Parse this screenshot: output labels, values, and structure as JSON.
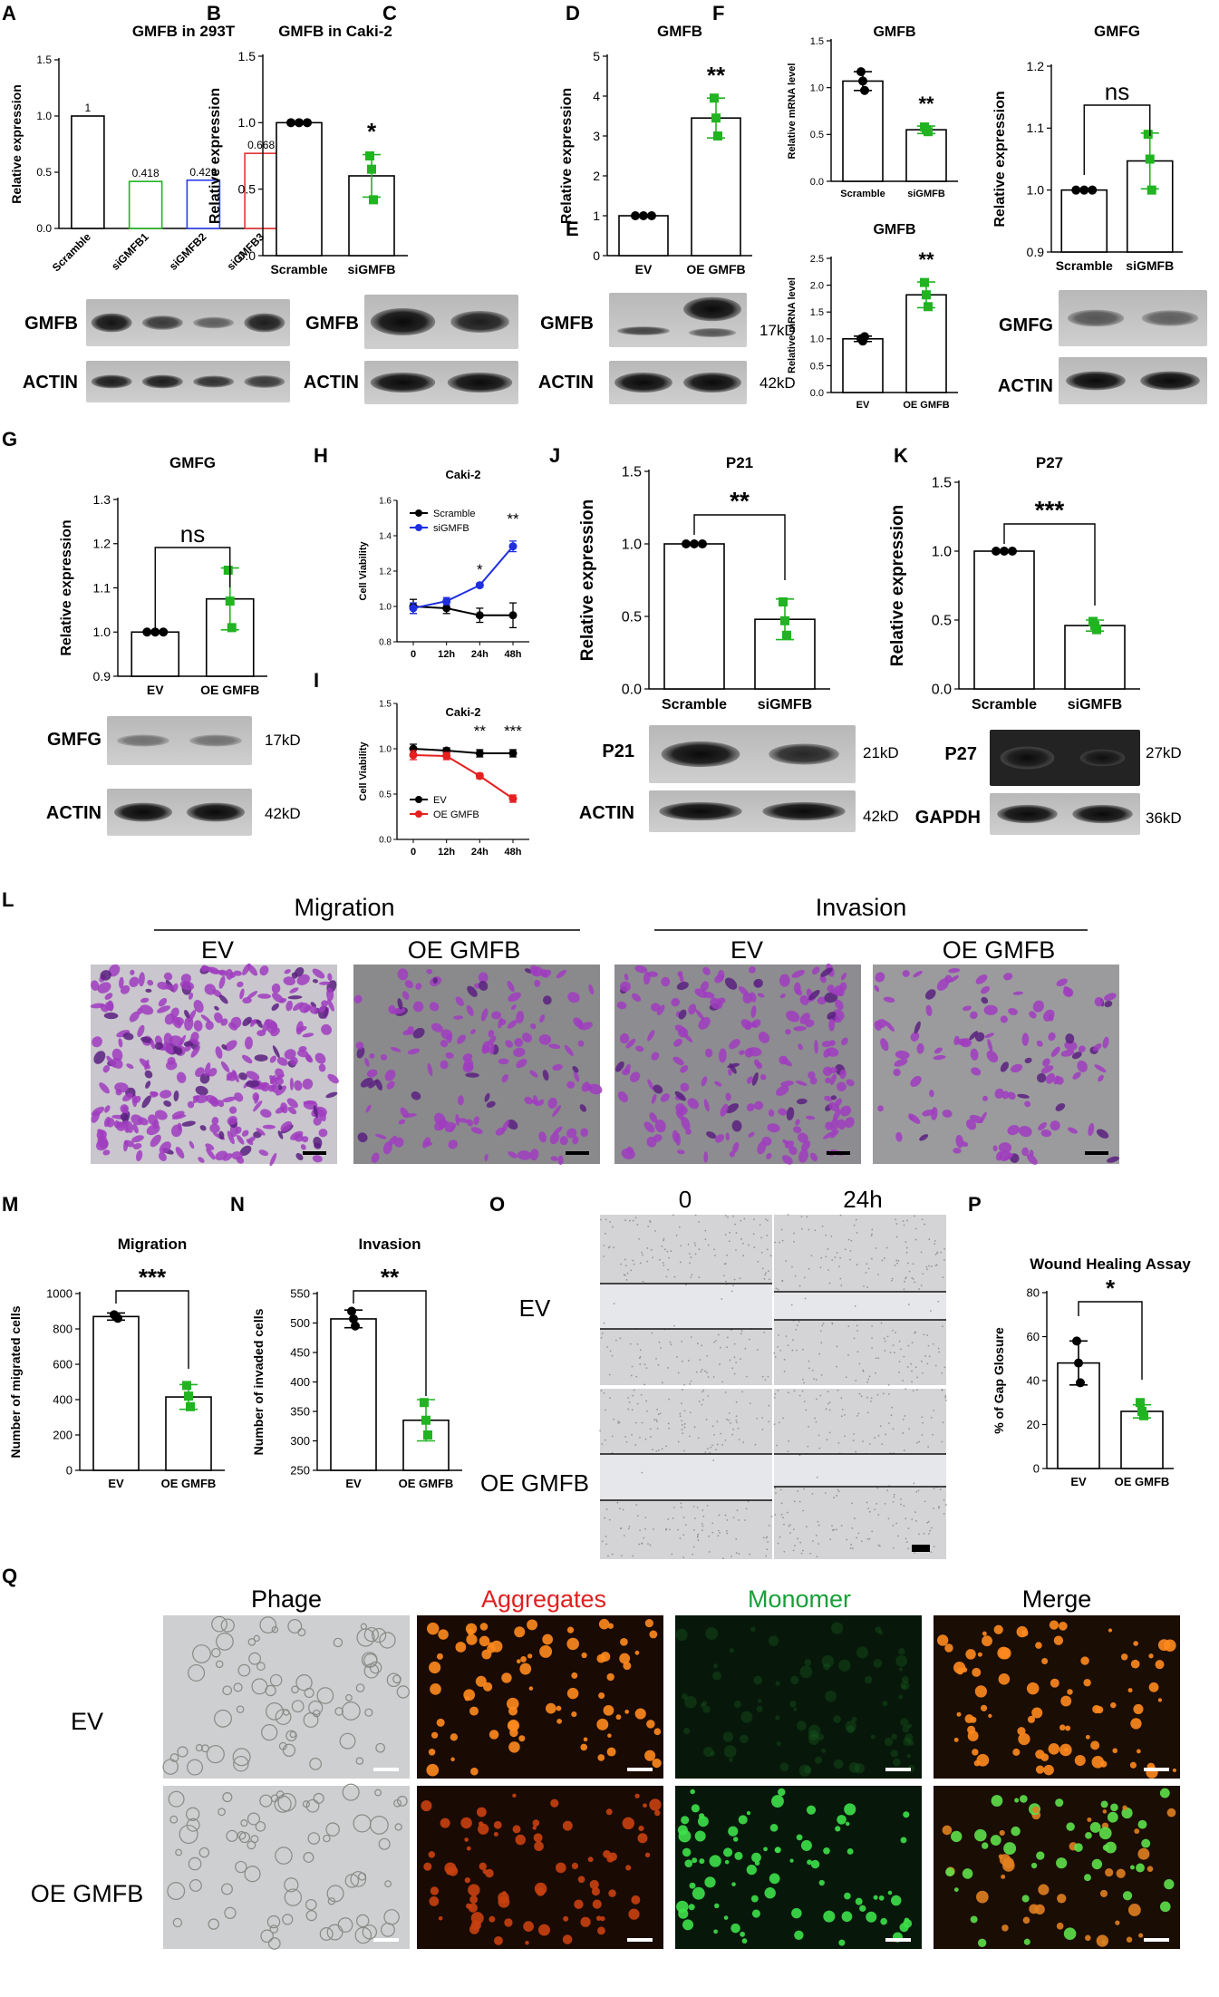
{
  "panels": {
    "A": {
      "letter": "A",
      "title": "GMFB in 293T",
      "ylabel": "Relative expression",
      "yticks": [
        "0.0",
        "0.5",
        "1.0",
        "1.5"
      ],
      "categories": [
        "Scramble",
        "siGMFB1",
        "siGMFB2",
        "siGMFB3"
      ],
      "values": [
        1,
        0.418,
        0.429,
        0.668
      ],
      "value_labels": [
        "1",
        "0.418",
        "0.429",
        "0.668"
      ],
      "bar_colors": [
        "#000000",
        "#22b322",
        "#2b3de6",
        "#e63232"
      ],
      "blots": [
        "GMFB",
        "ACTIN"
      ]
    },
    "B": {
      "letter": "B",
      "title": "GMFB in Caki-2",
      "ylabel": "Relative expression",
      "yticks": [
        "0.0",
        "0.5",
        "1.0",
        "1.5"
      ],
      "categories": [
        "Scramble",
        "siGMFB"
      ],
      "values": [
        1.0,
        0.6
      ],
      "sig": "*",
      "blots": [
        "GMFB",
        "ACTIN"
      ]
    },
    "C": {
      "letter": "C",
      "title": "GMFB",
      "ylabel": "Relative expression",
      "yticks": [
        "0",
        "1",
        "2",
        "3",
        "4",
        "5"
      ],
      "categories": [
        "EV",
        "OE GMFB"
      ],
      "values": [
        1.0,
        3.45
      ],
      "sig": "**",
      "blots": [
        "GMFB",
        "ACTIN"
      ],
      "sizes": [
        "17kD",
        "42kD"
      ]
    },
    "D": {
      "letter": "D",
      "title": "GMFB",
      "ylabel": "Relative mRNA level",
      "yticks": [
        "0.0",
        "0.5",
        "1.0",
        "1.5"
      ],
      "categories": [
        "Scramble",
        "siGMFB"
      ],
      "values": [
        1.07,
        0.55
      ],
      "sig": "**"
    },
    "E": {
      "letter": "E",
      "title": "GMFB",
      "ylabel": "Relative mRNA level",
      "yticks": [
        "0.0",
        "0.5",
        "1.0",
        "1.5",
        "2.0",
        "2.5"
      ],
      "categories": [
        "EV",
        "OE GMFB"
      ],
      "values": [
        1.0,
        1.82
      ],
      "sig": "**"
    },
    "F": {
      "letter": "F",
      "title": "GMFG",
      "ylabel": "Relative expression",
      "yticks": [
        "0.9",
        "1.0",
        "1.1",
        "1.2"
      ],
      "categories": [
        "Scramble",
        "siGMFB"
      ],
      "values": [
        1.0,
        1.047
      ],
      "sig": "ns",
      "blots": [
        "GMFG",
        "ACTIN"
      ]
    },
    "G": {
      "letter": "G",
      "title": "GMFG",
      "ylabel": "Relative expression",
      "yticks": [
        "0.9",
        "1.0",
        "1.1",
        "1.2",
        "1.3"
      ],
      "categories": [
        "EV",
        "OE GMFB"
      ],
      "values": [
        1.0,
        1.075
      ],
      "sig": "ns",
      "blots": [
        "GMFG",
        "ACTIN"
      ],
      "sizes": [
        "17kD",
        "42kD"
      ]
    },
    "H": {
      "letter": "H",
      "title": "Caki-2",
      "ylabel": "Cell Viability",
      "yticks": [
        "0.8",
        "1.0",
        "1.2",
        "1.4",
        "1.6"
      ],
      "xticks": [
        "0",
        "12h",
        "24h",
        "48h"
      ],
      "legend": [
        "Scramble",
        "siGMFB"
      ],
      "sig": [
        "*",
        "**"
      ]
    },
    "I": {
      "letter": "I",
      "title": "Caki-2",
      "ylabel": "Cell Viability",
      "yticks": [
        "0.0",
        "0.5",
        "1.0",
        "1.5"
      ],
      "xticks": [
        "0",
        "12h",
        "24h",
        "48h"
      ],
      "legend": [
        "EV",
        "OE GMFB"
      ],
      "sig": [
        "**",
        "***"
      ]
    },
    "J": {
      "letter": "J",
      "title": "P21",
      "ylabel": "Relative expression",
      "yticks": [
        "0.0",
        "0.5",
        "1.0",
        "1.5"
      ],
      "categories": [
        "Scramble",
        "siGMFB"
      ],
      "values": [
        1.0,
        0.48
      ],
      "sig": "**",
      "blots": [
        "P21",
        "ACTIN"
      ],
      "sizes": [
        "21kD",
        "42kD"
      ]
    },
    "K": {
      "letter": "K",
      "title": "P27",
      "ylabel": "Relative expression",
      "yticks": [
        "0.0",
        "0.5",
        "1.0",
        "1.5"
      ],
      "categories": [
        "Scramble",
        "siGMFB"
      ],
      "values": [
        1.0,
        0.46
      ],
      "sig": "***",
      "blots": [
        "P27",
        "GAPDH"
      ],
      "sizes": [
        "27kD",
        "36kD"
      ]
    },
    "L": {
      "letter": "L",
      "groups": [
        "Migration",
        "Invasion"
      ],
      "cols": [
        "EV",
        "OE GMFB",
        "EV",
        "OE GMFB"
      ]
    },
    "M": {
      "letter": "M",
      "title": "Migration",
      "ylabel": "Number of migrated cells",
      "yticks": [
        "0",
        "200",
        "400",
        "600",
        "800",
        "1000"
      ],
      "categories": [
        "EV",
        "OE GMFB"
      ],
      "values": [
        870,
        415
      ],
      "sig": "***"
    },
    "N": {
      "letter": "N",
      "title": "Invasion",
      "ylabel": "Number of invaded cells",
      "yticks": [
        "250",
        "300",
        "350",
        "400",
        "450",
        "500",
        "550"
      ],
      "categories": [
        "EV",
        "OE GMFB"
      ],
      "values": [
        507,
        335
      ],
      "sig": "**"
    },
    "O": {
      "letter": "O",
      "cols": [
        "0",
        "24h"
      ],
      "rows": [
        "EV",
        "OE GMFB"
      ]
    },
    "P": {
      "letter": "P",
      "title": "Wound Healing Assay",
      "ylabel": "% of Gap Glosure",
      "yticks": [
        "0",
        "20",
        "40",
        "60",
        "80"
      ],
      "categories": [
        "EV",
        "OE GMFB"
      ],
      "values": [
        48,
        26
      ],
      "sig": "*"
    },
    "Q": {
      "letter": "Q",
      "cols": [
        "Phage",
        "Aggregates",
        "Monomer",
        "Merge"
      ],
      "col_colors": [
        "#000000",
        "#e0201f",
        "#18a038",
        "#000000"
      ],
      "rows": [
        "EV",
        "OE GMFB"
      ]
    }
  },
  "chart_data": [
    {
      "type": "bar",
      "title": "GMFB in 293T",
      "ylabel": "Relative expression",
      "ylim": [
        0,
        1.5
      ],
      "categories": [
        "Scramble",
        "siGMFB1",
        "siGMFB2",
        "siGMFB3"
      ],
      "values": [
        1,
        0.418,
        0.429,
        0.668
      ]
    },
    {
      "type": "bar",
      "title": "GMFB in Caki-2",
      "ylabel": "Relative expression",
      "ylim": [
        0,
        1.5
      ],
      "categories": [
        "Scramble",
        "siGMFB"
      ],
      "values": [
        1.0,
        0.6
      ]
    },
    {
      "type": "bar",
      "title": "GMFB",
      "ylabel": "Relative expression",
      "ylim": [
        0,
        5
      ],
      "categories": [
        "EV",
        "OE GMFB"
      ],
      "values": [
        1.0,
        3.45
      ]
    },
    {
      "type": "bar",
      "title": "GMFB",
      "ylabel": "Relative mRNA level",
      "ylim": [
        0,
        1.5
      ],
      "categories": [
        "Scramble",
        "siGMFB"
      ],
      "values": [
        1.07,
        0.55
      ]
    },
    {
      "type": "bar",
      "title": "GMFB",
      "ylabel": "Relative mRNA level",
      "ylim": [
        0,
        2.5
      ],
      "categories": [
        "EV",
        "OE GMFB"
      ],
      "values": [
        1.0,
        1.82
      ]
    },
    {
      "type": "bar",
      "title": "GMFG",
      "ylabel": "Relative expression",
      "ylim": [
        0.9,
        1.2
      ],
      "categories": [
        "Scramble",
        "siGMFB"
      ],
      "values": [
        1.0,
        1.047
      ]
    },
    {
      "type": "bar",
      "title": "GMFG",
      "ylabel": "Relative expression",
      "ylim": [
        0.9,
        1.3
      ],
      "categories": [
        "EV",
        "OE GMFB"
      ],
      "values": [
        1.0,
        1.075
      ]
    },
    {
      "type": "line",
      "title": "Caki-2",
      "ylabel": "Cell Viability",
      "ylim": [
        0.8,
        1.6
      ],
      "x": [
        "0",
        "12h",
        "24h",
        "48h"
      ],
      "series": [
        {
          "name": "Scramble",
          "values": [
            1.0,
            0.99,
            0.95,
            0.95
          ]
        },
        {
          "name": "siGMFB",
          "values": [
            0.99,
            1.03,
            1.12,
            1.34
          ]
        }
      ]
    },
    {
      "type": "line",
      "title": "Caki-2",
      "ylabel": "Cell Viability",
      "ylim": [
        0,
        1.5
      ],
      "x": [
        "0",
        "12h",
        "24h",
        "48h"
      ],
      "series": [
        {
          "name": "EV",
          "values": [
            1.0,
            0.98,
            0.95,
            0.95
          ]
        },
        {
          "name": "OE GMFB",
          "values": [
            0.93,
            0.92,
            0.7,
            0.45
          ]
        }
      ]
    },
    {
      "type": "bar",
      "title": "P21",
      "ylabel": "Relative expression",
      "ylim": [
        0,
        1.5
      ],
      "categories": [
        "Scramble",
        "siGMFB"
      ],
      "values": [
        1.0,
        0.48
      ]
    },
    {
      "type": "bar",
      "title": "P27",
      "ylabel": "Relative expression",
      "ylim": [
        0,
        1.5
      ],
      "categories": [
        "Scramble",
        "siGMFB"
      ],
      "values": [
        1.0,
        0.46
      ]
    },
    {
      "type": "bar",
      "title": "Migration",
      "ylabel": "Number of migrated cells",
      "ylim": [
        0,
        1000
      ],
      "categories": [
        "EV",
        "OE GMFB"
      ],
      "values": [
        870,
        415
      ]
    },
    {
      "type": "bar",
      "title": "Invasion",
      "ylabel": "Number of invaded cells",
      "ylim": [
        250,
        550
      ],
      "categories": [
        "EV",
        "OE GMFB"
      ],
      "values": [
        507,
        335
      ]
    },
    {
      "type": "bar",
      "title": "Wound Healing Assay",
      "ylabel": "% of Gap Glosure",
      "ylim": [
        0,
        80
      ],
      "categories": [
        "EV",
        "OE GMFB"
      ],
      "values": [
        48,
        26
      ]
    }
  ]
}
